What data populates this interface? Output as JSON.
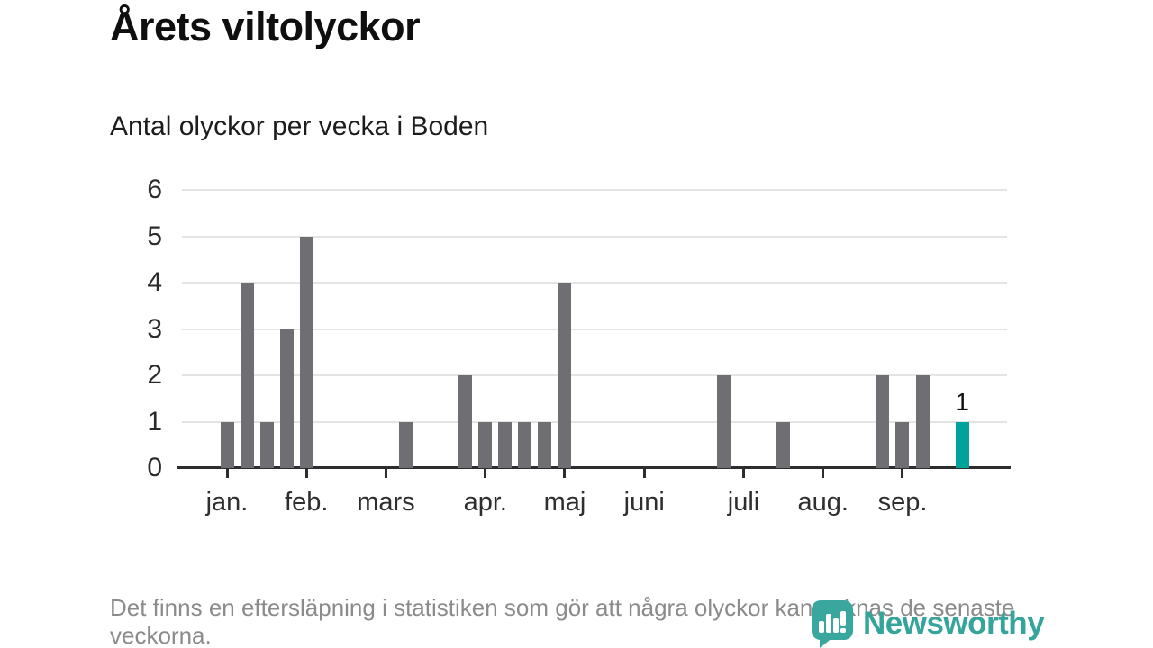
{
  "chart_data": {
    "type": "bar",
    "title": "Årets viltolyckor",
    "subtitle": "Antal olyckor per vecka i Boden",
    "x_unit": "vecka",
    "x_start_week": 1,
    "values": [
      1,
      4,
      1,
      3,
      5,
      0,
      0,
      0,
      0,
      1,
      0,
      0,
      2,
      1,
      1,
      1,
      1,
      4,
      0,
      0,
      0,
      0,
      0,
      0,
      0,
      2,
      0,
      0,
      1,
      0,
      0,
      0,
      0,
      2,
      1,
      2,
      0,
      1
    ],
    "highlight_week": 38,
    "value_labels": [
      {
        "week": 38,
        "text": "1"
      }
    ],
    "month_ticks": [
      {
        "week": 1,
        "label": "jan."
      },
      {
        "week": 5,
        "label": "feb."
      },
      {
        "week": 9,
        "label": "mars"
      },
      {
        "week": 14,
        "label": "apr."
      },
      {
        "week": 18,
        "label": "maj"
      },
      {
        "week": 22,
        "label": "juni"
      },
      {
        "week": 27,
        "label": "juli"
      },
      {
        "week": 31,
        "label": "aug."
      },
      {
        "week": 35,
        "label": "sep."
      }
    ],
    "yticks": [
      0,
      1,
      2,
      3,
      4,
      5,
      6
    ],
    "ylim": [
      0,
      6
    ],
    "grid": true,
    "legend": "none",
    "colors": {
      "bar": "#6e6e73",
      "highlight": "#00a29a",
      "grid": "#e4e4e4",
      "axis": "#2d2d2d",
      "tick_label": "#2e2e2e"
    }
  },
  "footer": {
    "note": "Det finns en eftersläpning i statistiken som gör att några olyckor kan saknas de senaste veckorna."
  },
  "brand": {
    "logo_text": "Newsworthy",
    "logo_icon": "newsworthy-speech-bubble-bar-chart",
    "color": "#35a59c"
  }
}
